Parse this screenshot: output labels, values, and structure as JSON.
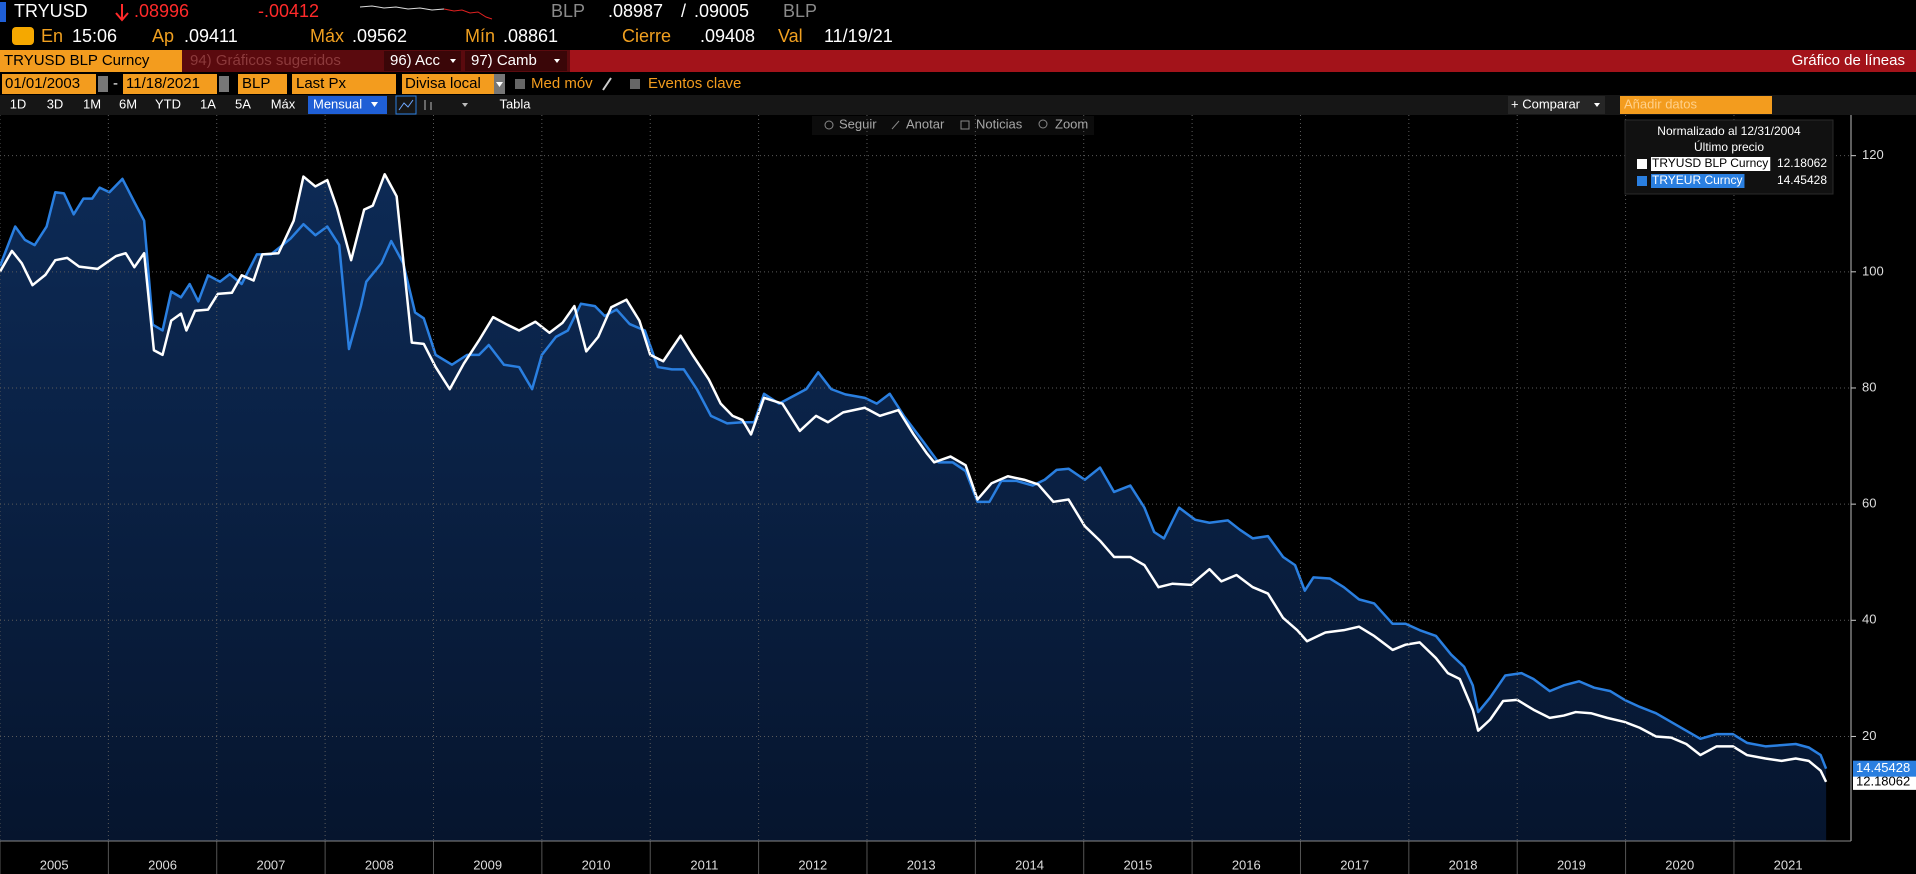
{
  "header": {
    "ticker": "TRYUSD",
    "last": ".08996",
    "change": "-.00412",
    "source": "BLP",
    "bid": ".08987",
    "separator": "/",
    "ask": ".09005",
    "source_2": "BLP"
  },
  "quote_row": {
    "time_label": "En",
    "time": "15:06",
    "open_label": "Ap",
    "open": ".09411",
    "high_label": "Máx",
    "high": ".09562",
    "low_label": "Mín",
    "low": ".08861",
    "close_label": "Cierre",
    "close": ".09408",
    "date_label": "Val",
    "date": "11/19/21"
  },
  "menu_bar": {
    "security": "TRYUSD BLP Curncy",
    "suggested": "94) Gráficos sugeridos",
    "actions": "96) Acc",
    "settings": "97) Camb",
    "chart_kind": "Gráfico de líneas"
  },
  "settings_bar": {
    "start_date": "01/01/2003",
    "dash": "-",
    "end_date": "11/18/2021",
    "source": "BLP",
    "field": "Last Px",
    "currency": "Divisa local",
    "moving_average": "Med móv",
    "key_events": "Eventos clave"
  },
  "period_bar": {
    "periods": [
      "1D",
      "3D",
      "1M",
      "6M",
      "YTD",
      "1A",
      "5A",
      "Máx"
    ],
    "frequency": "Mensual",
    "table": "Tabla",
    "compare": "+ Comparar",
    "add_data": "Añadir datos"
  },
  "chart_tools": [
    "Seguir",
    "Anotar",
    "Noticias",
    "Zoom"
  ],
  "chart_data": {
    "type": "line",
    "legend_title": "Normalizado al 12/31/2004",
    "legend_subtitle": "Último precio",
    "legend": "top-right",
    "grid": true,
    "xlim": [
      2005,
      2022.08
    ],
    "xticks": [
      2005,
      2006,
      2007,
      2008,
      2009,
      2010,
      2011,
      2012,
      2013,
      2014,
      2015,
      2016,
      2017,
      2018,
      2019,
      2020,
      2021
    ],
    "ylim": [
      2,
      127
    ],
    "yticks": [
      20,
      40,
      60,
      80,
      100,
      120
    ],
    "series": [
      {
        "name": "TRYUSD BLP Curncy",
        "color": "#ffffff",
        "x": [
          2005.0,
          2005.11,
          2005.2,
          2005.3,
          2005.42,
          2005.51,
          2005.62,
          2005.73,
          2005.9,
          2006.07,
          2006.16,
          2006.24,
          2006.33,
          2006.42,
          2006.5,
          2006.58,
          2006.67,
          2006.72,
          2006.8,
          2006.92,
          2007.01,
          2007.14,
          2007.23,
          2007.34,
          2007.42,
          2007.57,
          2007.71,
          2007.8,
          2007.91,
          2008.02,
          2008.11,
          2008.24,
          2008.36,
          2008.44,
          2008.55,
          2008.66,
          2008.8,
          2008.91,
          2009.02,
          2009.15,
          2009.28,
          2009.42,
          2009.55,
          2009.68,
          2009.79,
          2009.94,
          2010.07,
          2010.19,
          2010.3,
          2010.41,
          2010.52,
          2010.64,
          2010.78,
          2010.9,
          2011.0,
          2011.12,
          2011.28,
          2011.39,
          2011.54,
          2011.65,
          2011.76,
          2011.85,
          2011.93,
          2012.05,
          2012.22,
          2012.38,
          2012.53,
          2012.64,
          2012.78,
          2012.98,
          2013.12,
          2013.29,
          2013.43,
          2013.55,
          2013.62,
          2013.77,
          2013.91,
          2014.02,
          2014.15,
          2014.3,
          2014.45,
          2014.58,
          2014.72,
          2014.86,
          2015.01,
          2015.15,
          2015.28,
          2015.43,
          2015.56,
          2015.69,
          2015.82,
          2015.99,
          2016.16,
          2016.27,
          2016.41,
          2016.56,
          2016.7,
          2016.84,
          2016.97,
          2017.06,
          2017.23,
          2017.4,
          2017.54,
          2017.68,
          2017.85,
          2017.97,
          2018.1,
          2018.25,
          2018.36,
          2018.47,
          2018.59,
          2018.64,
          2018.75,
          2018.87,
          2019.0,
          2019.15,
          2019.3,
          2019.43,
          2019.54,
          2019.68,
          2019.83,
          2019.99,
          2020.13,
          2020.28,
          2020.42,
          2020.56,
          2020.69,
          2020.84,
          2020.99,
          2021.12,
          2021.29,
          2021.44,
          2021.57,
          2021.69,
          2021.8,
          2021.85
        ],
        "values": [
          100,
          103.6,
          101.5,
          97.7,
          99.5,
          102,
          102.4,
          100.9,
          100.5,
          102.7,
          103.2,
          100.8,
          103.2,
          86.5,
          85.7,
          91.6,
          92.8,
          89.9,
          93.3,
          93.5,
          96.2,
          96.4,
          99.4,
          98.5,
          103,
          103.2,
          108.8,
          116.4,
          114.7,
          115.8,
          111,
          102,
          110.7,
          111.4,
          116.8,
          113,
          87.8,
          87.6,
          83.6,
          79.8,
          84.2,
          88.2,
          92.2,
          90.9,
          89.9,
          91.4,
          89.5,
          91.2,
          94.1,
          86.3,
          88.8,
          93.9,
          95.2,
          91.6,
          85.7,
          84.6,
          89,
          85.7,
          81.5,
          77.3,
          75.2,
          74.5,
          72,
          78.3,
          77.3,
          72.6,
          75.2,
          74.1,
          75.8,
          76.6,
          75.2,
          76.2,
          72,
          68.8,
          67.2,
          68.2,
          66.7,
          60.8,
          63.6,
          64.8,
          64.2,
          63.4,
          60.4,
          60.8,
          56.2,
          53.7,
          50.9,
          50.9,
          49.5,
          45.7,
          46.3,
          46.1,
          48.8,
          46.7,
          47.8,
          45.7,
          44.6,
          40.4,
          38.3,
          36.4,
          37.9,
          38.3,
          38.9,
          37.3,
          34.9,
          35.8,
          36.2,
          33.5,
          30.9,
          29.9,
          24.6,
          21,
          22.9,
          26.1,
          26.3,
          24.6,
          23.2,
          23.6,
          24.2,
          24,
          23.2,
          22.5,
          21.5,
          20,
          19.8,
          18.7,
          16.8,
          18.3,
          18.3,
          16.8,
          16.2,
          15.8,
          16.2,
          15.8,
          14.1,
          12.18062
        ]
      },
      {
        "name": "TRYEUR Curncy",
        "color": "#2a7fe0",
        "x": [
          2005.0,
          2005.14,
          2005.23,
          2005.32,
          2005.43,
          2005.51,
          2005.59,
          2005.68,
          2005.77,
          2005.85,
          2005.92,
          2006.01,
          2006.13,
          2006.24,
          2006.33,
          2006.41,
          2006.5,
          2006.58,
          2006.67,
          2006.75,
          2006.83,
          2006.92,
          2007.03,
          2007.12,
          2007.23,
          2007.37,
          2007.5,
          2007.68,
          2007.8,
          2007.91,
          2008.02,
          2008.13,
          2008.22,
          2008.33,
          2008.38,
          2008.52,
          2008.61,
          2008.72,
          2008.83,
          2008.91,
          2009.02,
          2009.17,
          2009.31,
          2009.42,
          2009.51,
          2009.65,
          2009.79,
          2009.91,
          2010.0,
          2010.13,
          2010.24,
          2010.36,
          2010.49,
          2010.58,
          2010.69,
          2010.81,
          2010.95,
          2011.07,
          2011.2,
          2011.31,
          2011.43,
          2011.56,
          2011.71,
          2011.85,
          2011.96,
          2012.05,
          2012.19,
          2012.33,
          2012.44,
          2012.55,
          2012.67,
          2012.8,
          2012.98,
          2013.09,
          2013.21,
          2013.34,
          2013.51,
          2013.66,
          2013.79,
          2013.91,
          2014.02,
          2014.13,
          2014.24,
          2014.38,
          2014.53,
          2014.64,
          2014.75,
          2014.86,
          2015.01,
          2015.15,
          2015.28,
          2015.43,
          2015.56,
          2015.65,
          2015.74,
          2015.88,
          2016.03,
          2016.16,
          2016.33,
          2016.44,
          2016.56,
          2016.7,
          2016.84,
          2016.95,
          2017.04,
          2017.12,
          2017.27,
          2017.4,
          2017.54,
          2017.68,
          2017.85,
          2017.97,
          2018.1,
          2018.25,
          2018.39,
          2018.51,
          2018.59,
          2018.64,
          2018.75,
          2018.89,
          2019.04,
          2019.15,
          2019.3,
          2019.43,
          2019.57,
          2019.71,
          2019.86,
          2019.99,
          2020.13,
          2020.28,
          2020.42,
          2020.56,
          2020.69,
          2020.84,
          2020.99,
          2021.12,
          2021.29,
          2021.44,
          2021.57,
          2021.69,
          2021.8,
          2021.85
        ],
        "values": [
          101,
          107.8,
          105.5,
          104.6,
          107.8,
          113.7,
          113.5,
          109.9,
          112.6,
          112.6,
          114.5,
          113.7,
          116,
          112,
          108.8,
          90.9,
          89.9,
          96.6,
          95.6,
          97.9,
          94.9,
          99.4,
          98.3,
          99.6,
          97.9,
          103,
          103,
          105.7,
          108.2,
          106.3,
          107.8,
          104.6,
          86.7,
          94.1,
          98.3,
          101.5,
          105.3,
          101.5,
          93,
          92,
          85.7,
          84,
          85.7,
          85.7,
          87.4,
          84,
          83.6,
          79.8,
          85.7,
          88.8,
          89.9,
          94.5,
          94.1,
          92.4,
          93.5,
          91,
          89.9,
          83.6,
          83.2,
          83.2,
          79.8,
          75.2,
          73.9,
          74.1,
          74.1,
          79,
          77.3,
          78.7,
          79.8,
          82.7,
          79.8,
          78.9,
          78.3,
          77.3,
          79,
          75.2,
          71,
          67.2,
          67.2,
          65.7,
          60.4,
          60.4,
          64,
          64,
          63.2,
          64.2,
          65.9,
          66.1,
          64.2,
          66.3,
          62.1,
          63.2,
          59.4,
          55.2,
          54.1,
          59.4,
          57.3,
          56.8,
          57.2,
          55.6,
          54.1,
          54.5,
          50.9,
          49.5,
          45.1,
          47.4,
          47.2,
          45.7,
          43.6,
          42.9,
          39.4,
          39.4,
          38.3,
          37.3,
          34.1,
          32,
          28.8,
          24.2,
          26.7,
          30.5,
          30.9,
          29.9,
          27.8,
          28.8,
          29.5,
          28.4,
          27.8,
          26.3,
          25.1,
          24,
          22.5,
          21,
          19.6,
          20.4,
          20.4,
          18.9,
          18.3,
          18.5,
          18.7,
          18.1,
          16.8,
          14.45428
        ]
      }
    ]
  }
}
